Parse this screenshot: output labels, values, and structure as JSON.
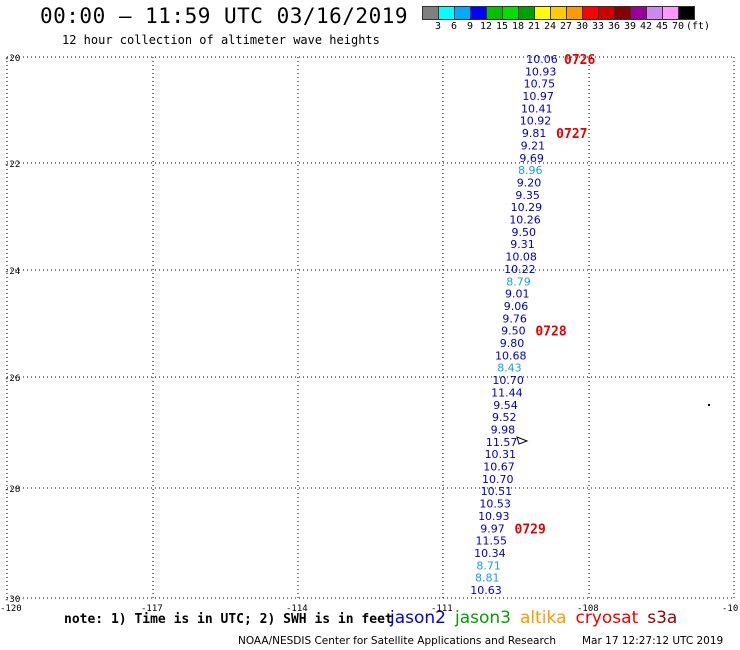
{
  "header": {
    "title": "00:00 – 11:59 UTC 03/16/2019",
    "subtitle": "12 hour collection of altimeter wave heights"
  },
  "color_scale": {
    "colors": [
      "#808080",
      "#00ffff",
      "#00aaff",
      "#0000ff",
      "#00c000",
      "#00e000",
      "#00a000",
      "#ffff00",
      "#ffcc00",
      "#ff9900",
      "#ff0000",
      "#cc0000",
      "#880000",
      "#990099",
      "#cc88ee",
      "#ff99ff",
      "#000000"
    ],
    "labels": [
      "3",
      "6",
      "9",
      "12",
      "15",
      "18",
      "21",
      "24",
      "27",
      "30",
      "33",
      "36",
      "39",
      "42",
      "45",
      "70",
      "(ft)"
    ]
  },
  "map": {
    "lat_ticks": [
      "-20",
      "-22",
      "-24",
      "-26",
      "-28",
      "-30"
    ],
    "lon_ticks": [
      "-120",
      "-117",
      "-114",
      "-111",
      "-108",
      "-10"
    ]
  },
  "observations": [
    {
      "v": "10.06",
      "c": "#0000bb"
    },
    {
      "v": "10.93",
      "c": "#0000bb"
    },
    {
      "v": "10.75",
      "c": "#0000bb"
    },
    {
      "v": "10.97",
      "c": "#0000bb"
    },
    {
      "v": "10.41",
      "c": "#0000bb"
    },
    {
      "v": "10.92",
      "c": "#0000bb"
    },
    {
      "v": "9.81",
      "c": "#0000bb"
    },
    {
      "v": "9.21",
      "c": "#0000bb"
    },
    {
      "v": "9.69",
      "c": "#0000bb"
    },
    {
      "v": "8.96",
      "c": "#1aa0e0"
    },
    {
      "v": "9.20",
      "c": "#0000bb"
    },
    {
      "v": "9.35",
      "c": "#0000bb"
    },
    {
      "v": "10.29",
      "c": "#0000bb"
    },
    {
      "v": "10.26",
      "c": "#0000bb"
    },
    {
      "v": "9.50",
      "c": "#0000bb"
    },
    {
      "v": "9.31",
      "c": "#0000bb"
    },
    {
      "v": "10.08",
      "c": "#0000bb"
    },
    {
      "v": "10.22",
      "c": "#0000bb"
    },
    {
      "v": "8.79",
      "c": "#1aa0e0"
    },
    {
      "v": "9.01",
      "c": "#0000bb"
    },
    {
      "v": "9.06",
      "c": "#0000bb"
    },
    {
      "v": "9.76",
      "c": "#0000bb"
    },
    {
      "v": "9.50",
      "c": "#0000bb"
    },
    {
      "v": "9.80",
      "c": "#0000bb"
    },
    {
      "v": "10.68",
      "c": "#0000bb"
    },
    {
      "v": "8.43",
      "c": "#1aa0e0"
    },
    {
      "v": "10.70",
      "c": "#0000bb"
    },
    {
      "v": "11.44",
      "c": "#0000bb"
    },
    {
      "v": "9.54",
      "c": "#0000bb"
    },
    {
      "v": "9.52",
      "c": "#0000bb"
    },
    {
      "v": "9.98",
      "c": "#0000bb"
    },
    {
      "v": "11.57",
      "c": "#0000bb"
    },
    {
      "v": "10.31",
      "c": "#0000bb"
    },
    {
      "v": "10.67",
      "c": "#0000bb"
    },
    {
      "v": "10.70",
      "c": "#0000bb"
    },
    {
      "v": "10.51",
      "c": "#0000bb"
    },
    {
      "v": "10.53",
      "c": "#0000bb"
    },
    {
      "v": "10.93",
      "c": "#0000bb"
    },
    {
      "v": "9.97",
      "c": "#0000bb"
    },
    {
      "v": "11.55",
      "c": "#0000bb"
    },
    {
      "v": "10.34",
      "c": "#0000bb"
    },
    {
      "v": "8.71",
      "c": "#1aa0e0"
    },
    {
      "v": "8.81",
      "c": "#1aa0e0"
    },
    {
      "v": "10.63",
      "c": "#0000bb"
    }
  ],
  "pass_times": [
    {
      "label": "0726",
      "row": 0
    },
    {
      "label": "0727",
      "row": 6
    },
    {
      "label": "0728",
      "row": 22
    },
    {
      "label": "0729",
      "row": 38
    }
  ],
  "footer": {
    "note": "note: 1) Time is in UTC; 2) SWH is in feet",
    "satellites": [
      {
        "name": "jason2",
        "color": "#0000dd"
      },
      {
        "name": "jason3",
        "color": "#00a000"
      },
      {
        "name": "altika",
        "color": "#ff9900"
      },
      {
        "name": "cryosat",
        "color": "#ee0000"
      },
      {
        "name": "s3a",
        "color": "#990000"
      }
    ],
    "credit": "NOAA/NESDIS Center for Satellite Applications and Research",
    "timestamp": "Mar 17 12:27:12 UTC 2019"
  }
}
